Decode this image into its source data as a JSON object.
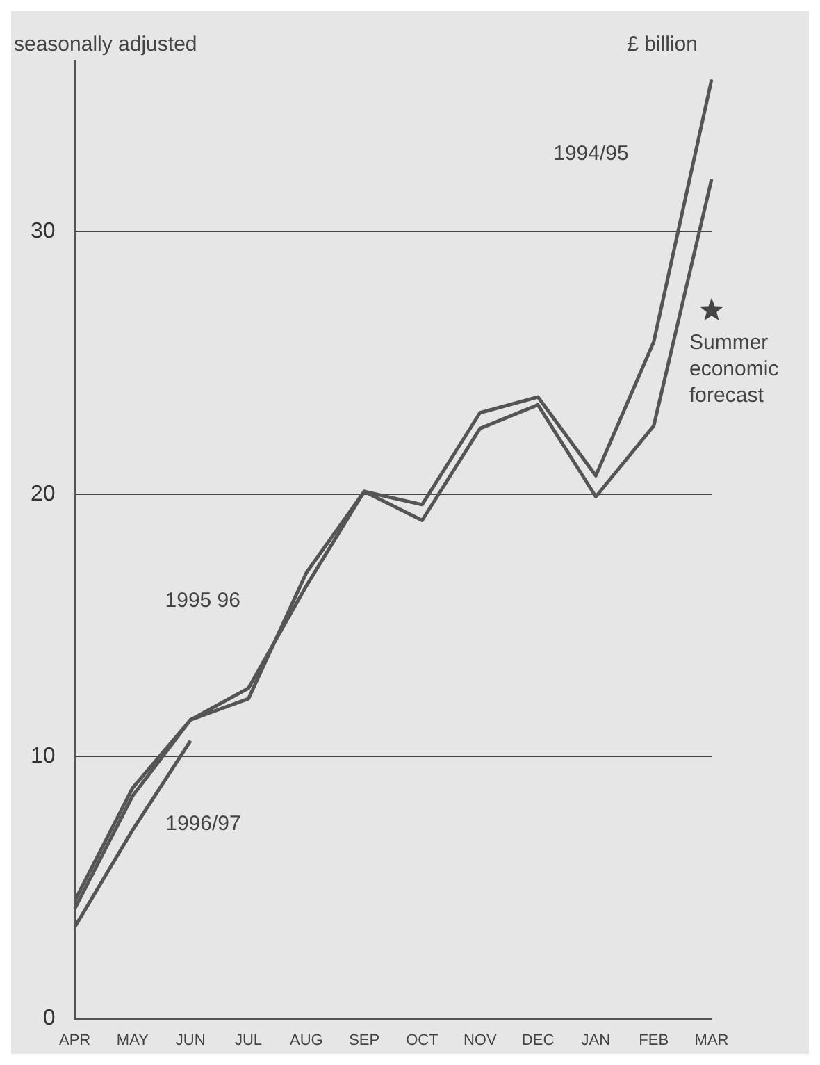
{
  "chart_data": {
    "type": "line",
    "ylabel": "seasonally adjusted",
    "annotations": [
      "£ billion"
    ],
    "categories": [
      "APR",
      "MAY",
      "JUN",
      "JUL",
      "AUG",
      "SEP",
      "OCT",
      "NOV",
      "DEC",
      "JAN",
      "FEB",
      "MAR"
    ],
    "series": [
      {
        "name": "1994/95",
        "color": "#555555",
        "values": [
          4.2,
          8.5,
          11.4,
          12.6,
          16.5,
          20.1,
          19.6,
          23.1,
          23.7,
          20.7,
          25.8,
          35.8
        ]
      },
      {
        "name": "1995 96",
        "color": "#555555",
        "values": [
          4.5,
          8.8,
          11.4,
          12.2,
          17.0,
          20.1,
          19.0,
          22.5,
          23.4,
          19.9,
          22.6,
          32.0
        ]
      },
      {
        "name": "1996/97",
        "color": "#555555",
        "values": [
          3.5,
          7.2,
          10.6,
          null,
          null,
          null,
          null,
          null,
          null,
          null,
          null,
          null
        ]
      },
      {
        "name": "Summer economic forecast",
        "type": "scatter",
        "marker": "star",
        "color": "#444444",
        "x": [
          "MAR"
        ],
        "values": [
          27
        ]
      }
    ],
    "ylim": [
      0,
      36.5
    ],
    "yticks": [
      0,
      10,
      20,
      30
    ],
    "grid": "y",
    "legend": false,
    "marker": "none",
    "line_style": "solid"
  }
}
